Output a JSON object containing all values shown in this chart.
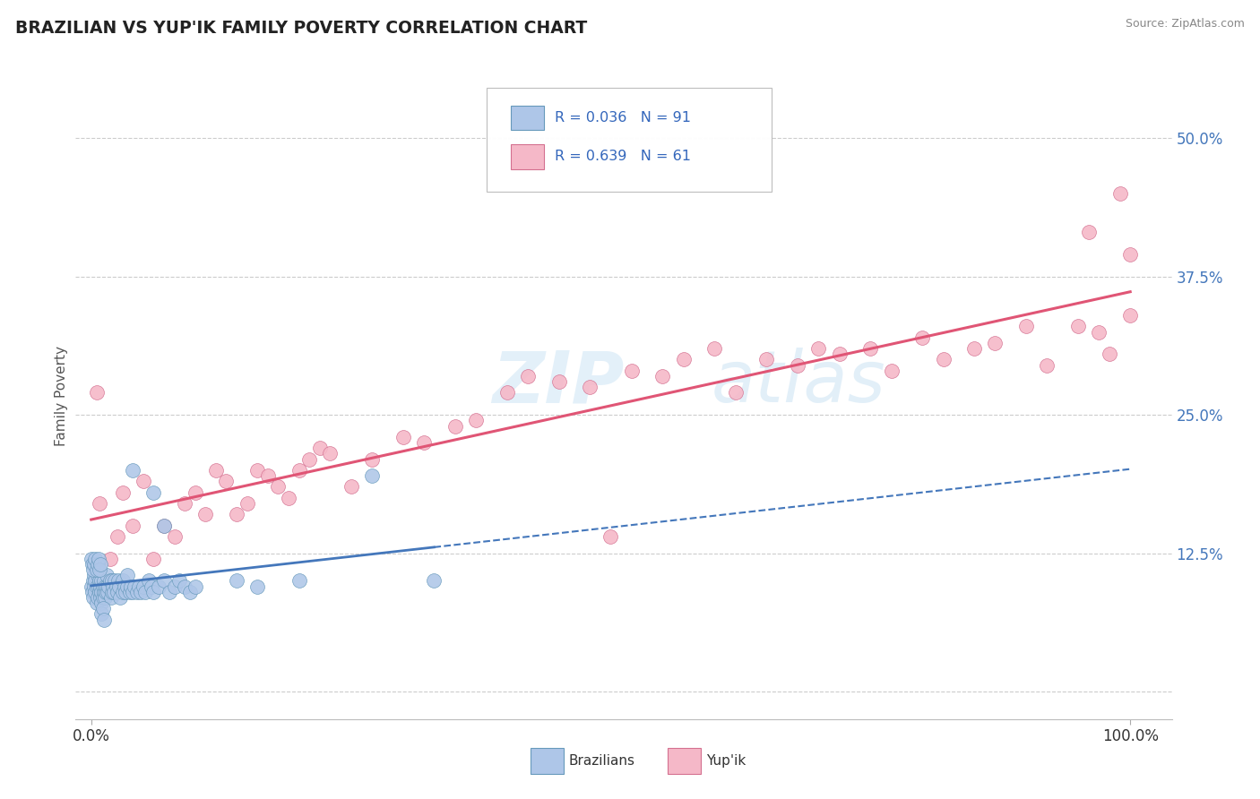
{
  "title": "BRAZILIAN VS YUP'IK FAMILY POVERTY CORRELATION CHART",
  "source": "Source: ZipAtlas.com",
  "ylabel": "Family Poverty",
  "legend_label1": "Brazilians",
  "legend_label2": "Yup'ik",
  "R1": 0.036,
  "N1": 91,
  "R2": 0.639,
  "N2": 61,
  "watermark_zip": "ZIP",
  "watermark_atlas": "atlas",
  "color_brazilian": "#aec6e8",
  "color_yupik": "#f5b8c8",
  "color_trend1": "#4477bb",
  "color_trend2": "#e05575",
  "ytick_vals": [
    0.0,
    0.125,
    0.25,
    0.375,
    0.5
  ],
  "ytick_labels": [
    "",
    "12.5%",
    "25.0%",
    "37.5%",
    "50.0%"
  ],
  "braz_x_cluster": [
    0.0,
    0.001,
    0.002,
    0.002,
    0.003,
    0.003,
    0.004,
    0.004,
    0.005,
    0.005,
    0.006,
    0.006,
    0.007,
    0.007,
    0.008,
    0.008,
    0.009,
    0.009,
    0.01,
    0.01,
    0.01,
    0.011,
    0.011,
    0.012,
    0.012,
    0.013,
    0.013,
    0.014,
    0.015,
    0.015,
    0.016,
    0.017,
    0.018,
    0.019,
    0.02,
    0.02,
    0.021,
    0.022,
    0.023,
    0.024,
    0.025,
    0.026,
    0.027,
    0.028,
    0.03,
    0.03,
    0.032,
    0.033,
    0.035,
    0.035,
    0.037,
    0.038,
    0.04,
    0.042,
    0.044,
    0.046,
    0.048,
    0.05,
    0.052,
    0.055,
    0.058,
    0.06,
    0.065,
    0.07,
    0.075,
    0.08,
    0.085,
    0.09,
    0.095,
    0.1,
    0.0,
    0.001,
    0.002,
    0.003,
    0.004,
    0.005,
    0.006,
    0.007,
    0.008,
    0.009,
    0.01,
    0.011,
    0.012,
    0.14,
    0.16,
    0.2,
    0.27,
    0.33,
    0.04,
    0.06,
    0.07
  ],
  "braz_y_cluster": [
    0.095,
    0.09,
    0.1,
    0.085,
    0.095,
    0.105,
    0.09,
    0.1,
    0.08,
    0.095,
    0.105,
    0.085,
    0.095,
    0.11,
    0.09,
    0.1,
    0.085,
    0.095,
    0.08,
    0.09,
    0.1,
    0.085,
    0.095,
    0.09,
    0.1,
    0.085,
    0.095,
    0.09,
    0.095,
    0.105,
    0.09,
    0.095,
    0.1,
    0.085,
    0.09,
    0.1,
    0.095,
    0.09,
    0.1,
    0.095,
    0.09,
    0.1,
    0.095,
    0.085,
    0.09,
    0.1,
    0.095,
    0.09,
    0.095,
    0.105,
    0.09,
    0.095,
    0.09,
    0.095,
    0.09,
    0.095,
    0.09,
    0.095,
    0.09,
    0.1,
    0.095,
    0.09,
    0.095,
    0.1,
    0.09,
    0.095,
    0.1,
    0.095,
    0.09,
    0.095,
    0.12,
    0.115,
    0.11,
    0.115,
    0.12,
    0.11,
    0.115,
    0.12,
    0.11,
    0.115,
    0.07,
    0.075,
    0.065,
    0.1,
    0.095,
    0.1,
    0.195,
    0.1,
    0.2,
    0.18,
    0.15
  ],
  "yupik_x": [
    0.005,
    0.008,
    0.012,
    0.018,
    0.025,
    0.03,
    0.04,
    0.05,
    0.06,
    0.07,
    0.08,
    0.09,
    0.1,
    0.11,
    0.12,
    0.13,
    0.14,
    0.15,
    0.16,
    0.17,
    0.18,
    0.19,
    0.2,
    0.21,
    0.22,
    0.23,
    0.25,
    0.27,
    0.3,
    0.32,
    0.35,
    0.37,
    0.4,
    0.42,
    0.45,
    0.48,
    0.5,
    0.52,
    0.55,
    0.57,
    0.6,
    0.62,
    0.65,
    0.68,
    0.7,
    0.72,
    0.75,
    0.77,
    0.8,
    0.82,
    0.85,
    0.87,
    0.9,
    0.92,
    0.95,
    0.97,
    0.98,
    1.0,
    1.0,
    0.99,
    0.96
  ],
  "yupik_y": [
    0.27,
    0.17,
    0.1,
    0.12,
    0.14,
    0.18,
    0.15,
    0.19,
    0.12,
    0.15,
    0.14,
    0.17,
    0.18,
    0.16,
    0.2,
    0.19,
    0.16,
    0.17,
    0.2,
    0.195,
    0.185,
    0.175,
    0.2,
    0.21,
    0.22,
    0.215,
    0.185,
    0.21,
    0.23,
    0.225,
    0.24,
    0.245,
    0.27,
    0.285,
    0.28,
    0.275,
    0.14,
    0.29,
    0.285,
    0.3,
    0.31,
    0.27,
    0.3,
    0.295,
    0.31,
    0.305,
    0.31,
    0.29,
    0.32,
    0.3,
    0.31,
    0.315,
    0.33,
    0.295,
    0.33,
    0.325,
    0.305,
    0.34,
    0.395,
    0.45,
    0.415
  ]
}
